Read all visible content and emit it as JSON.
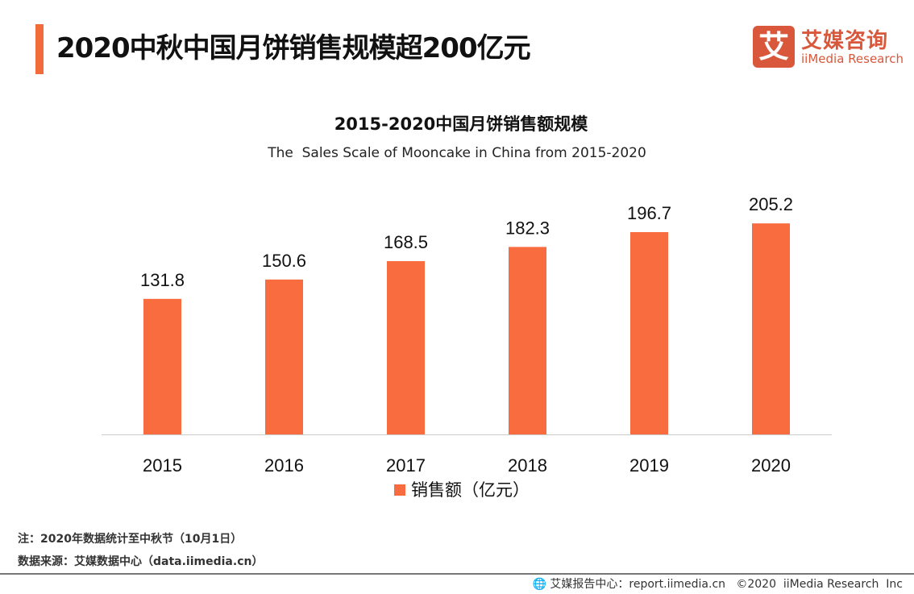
{
  "header": {
    "title": "2020中秋中国月饼销售规模超200亿元",
    "accent_color": "#f26b3a"
  },
  "logo": {
    "mark": "艾",
    "cn": "艾媒咨询",
    "en": "iiMedia Research",
    "color": "#d9573a"
  },
  "chart_data": {
    "type": "bar",
    "title": "2015-2020中国月饼销售额规模",
    "subtitle": "The  Sales Scale of Mooncake in China from 2015-2020",
    "categories": [
      "2015",
      "2016",
      "2017",
      "2018",
      "2019",
      "2020"
    ],
    "series": [
      {
        "name": "销售额（亿元）",
        "values": [
          131.8,
          150.6,
          168.5,
          182.3,
          196.7,
          205.2
        ],
        "color": "#f96c40"
      }
    ],
    "ylim": [
      0,
      250
    ],
    "grid": false,
    "legend": "bottom"
  },
  "notes": {
    "note": "注：2020年数据统计至中秋节（10月1日）",
    "source": "数据来源：艾媒数据中心（data.iimedia.cn）"
  },
  "footer": {
    "icon": "globe-icon",
    "text": "艾媒报告中心：report.iimedia.cn   ©2020  iiMedia Research  Inc"
  }
}
